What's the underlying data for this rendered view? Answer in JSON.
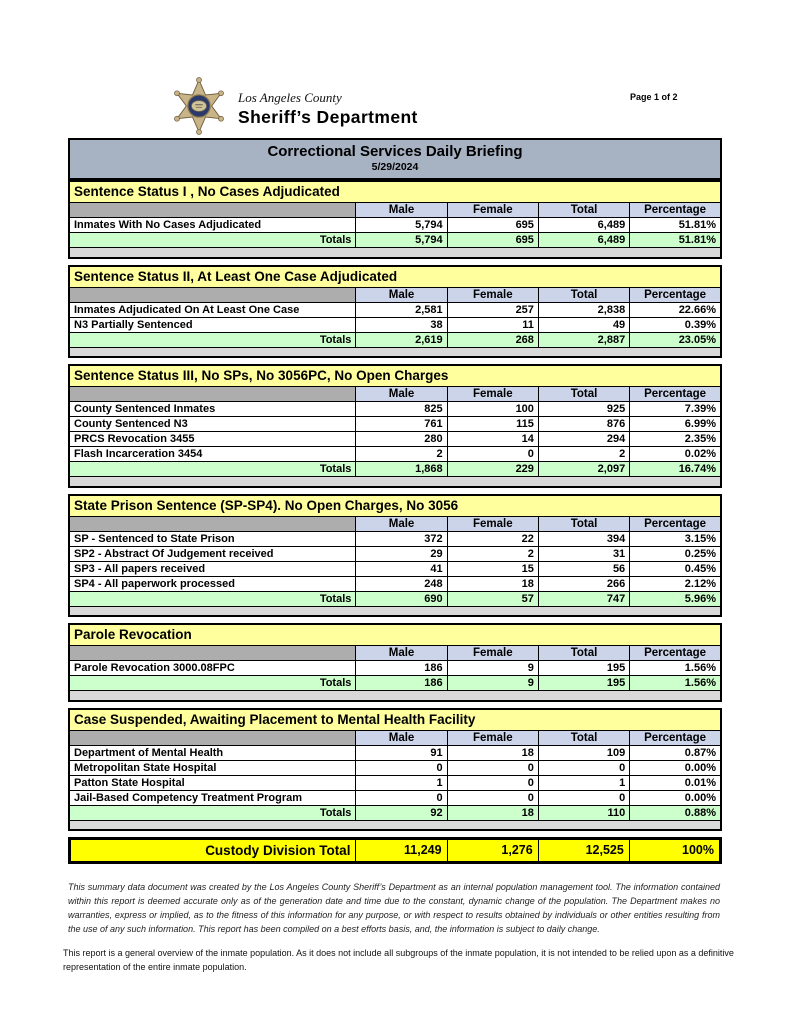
{
  "header": {
    "logo_county": "Los Angeles County",
    "logo_department": "Sheriff’s Department",
    "page_label": "Page 1 of 2"
  },
  "title_bar": {
    "title": "Correctional Services Daily Briefing",
    "date": "5/29/2024"
  },
  "columns": [
    "Male",
    "Female",
    "Total",
    "Percentage"
  ],
  "totals_label": "Totals",
  "sections": [
    {
      "title": "Sentence Status I , No Cases Adjudicated",
      "rows": [
        {
          "label": "Inmates With No Cases Adjudicated",
          "values": [
            "5,794",
            "695",
            "6,489",
            "51.81%"
          ]
        }
      ],
      "totals": [
        "5,794",
        "695",
        "6,489",
        "51.81%"
      ]
    },
    {
      "title": "Sentence Status II, At Least One Case Adjudicated",
      "rows": [
        {
          "label": "Inmates Adjudicated On At Least One Case",
          "values": [
            "2,581",
            "257",
            "2,838",
            "22.66%"
          ]
        },
        {
          "label": "N3 Partially Sentenced",
          "values": [
            "38",
            "11",
            "49",
            "0.39%"
          ]
        }
      ],
      "totals": [
        "2,619",
        "268",
        "2,887",
        "23.05%"
      ]
    },
    {
      "title": "Sentence Status III, No SPs, No 3056PC, No Open Charges",
      "rows": [
        {
          "label": "County Sentenced Inmates",
          "values": [
            "825",
            "100",
            "925",
            "7.39%"
          ]
        },
        {
          "label": "County Sentenced N3",
          "values": [
            "761",
            "115",
            "876",
            "6.99%"
          ]
        },
        {
          "label": "PRCS Revocation 3455",
          "values": [
            "280",
            "14",
            "294",
            "2.35%"
          ]
        },
        {
          "label": "Flash Incarceration 3454",
          "values": [
            "2",
            "0",
            "2",
            "0.02%"
          ]
        }
      ],
      "totals": [
        "1,868",
        "229",
        "2,097",
        "16.74%"
      ]
    },
    {
      "title": "State Prison Sentence (SP-SP4). No Open Charges, No 3056",
      "rows": [
        {
          "label": "SP - Sentenced to State Prison",
          "values": [
            "372",
            "22",
            "394",
            "3.15%"
          ]
        },
        {
          "label": "SP2 - Abstract Of Judgement received",
          "values": [
            "29",
            "2",
            "31",
            "0.25%"
          ]
        },
        {
          "label": "SP3 - All papers received",
          "values": [
            "41",
            "15",
            "56",
            "0.45%"
          ]
        },
        {
          "label": "SP4 - All paperwork processed",
          "values": [
            "248",
            "18",
            "266",
            "2.12%"
          ]
        }
      ],
      "totals": [
        "690",
        "57",
        "747",
        "5.96%"
      ]
    },
    {
      "title": "Parole Revocation",
      "rows": [
        {
          "label": "Parole Revocation 3000.08FPC",
          "values": [
            "186",
            "9",
            "195",
            "1.56%"
          ]
        }
      ],
      "totals": [
        "186",
        "9",
        "195",
        "1.56%"
      ]
    },
    {
      "title": "Case Suspended, Awaiting Placement to Mental Health Facility",
      "rows": [
        {
          "label": "Department of Mental Health",
          "values": [
            "91",
            "18",
            "109",
            "0.87%"
          ]
        },
        {
          "label": "Metropolitan State Hospital",
          "values": [
            "0",
            "0",
            "0",
            "0.00%"
          ]
        },
        {
          "label": "Patton State Hospital",
          "values": [
            "1",
            "0",
            "1",
            "0.01%"
          ]
        },
        {
          "label": "Jail-Based Competency Treatment Program",
          "values": [
            "0",
            "0",
            "0",
            "0.00%"
          ]
        }
      ],
      "totals": [
        "92",
        "18",
        "110",
        "0.88%"
      ]
    }
  ],
  "grand_total": {
    "label": "Custody Division Total",
    "values": [
      "11,249",
      "1,276",
      "12,525",
      "100%"
    ]
  },
  "disclaimer": "This summary data document was created by the Los Angeles County Sheriff’s Department as an internal population management tool.  The information contained within this report is deemed accurate only as of the generation date and time due to the constant, dynamic change of the population.  The Department makes no warranties, express or implied, as to the fitness of this information for any purpose, or with respect to results obtained by individuals or other entities resulting from the use of any such information.  This report has been compiled on a best efforts basis, and, the information is subject to daily change.",
  "footnote": "This report is a general overview of the inmate population.  As it does not include all subgroups of the inmate population, it is not intended to be relied upon as a definitive representation of the entire inmate population.",
  "colors": {
    "title_bar": "#a7b2c3",
    "section_header": "#ffff9e",
    "column_header": "#ccd4ea",
    "corner_cell": "#adadad",
    "totals_row": "#ccffcc",
    "grand_total_row": "#ffff00",
    "spacer_row": "#d9d9d9",
    "badge_gold": "#c9b48a",
    "badge_blue": "#2b3a6b"
  }
}
